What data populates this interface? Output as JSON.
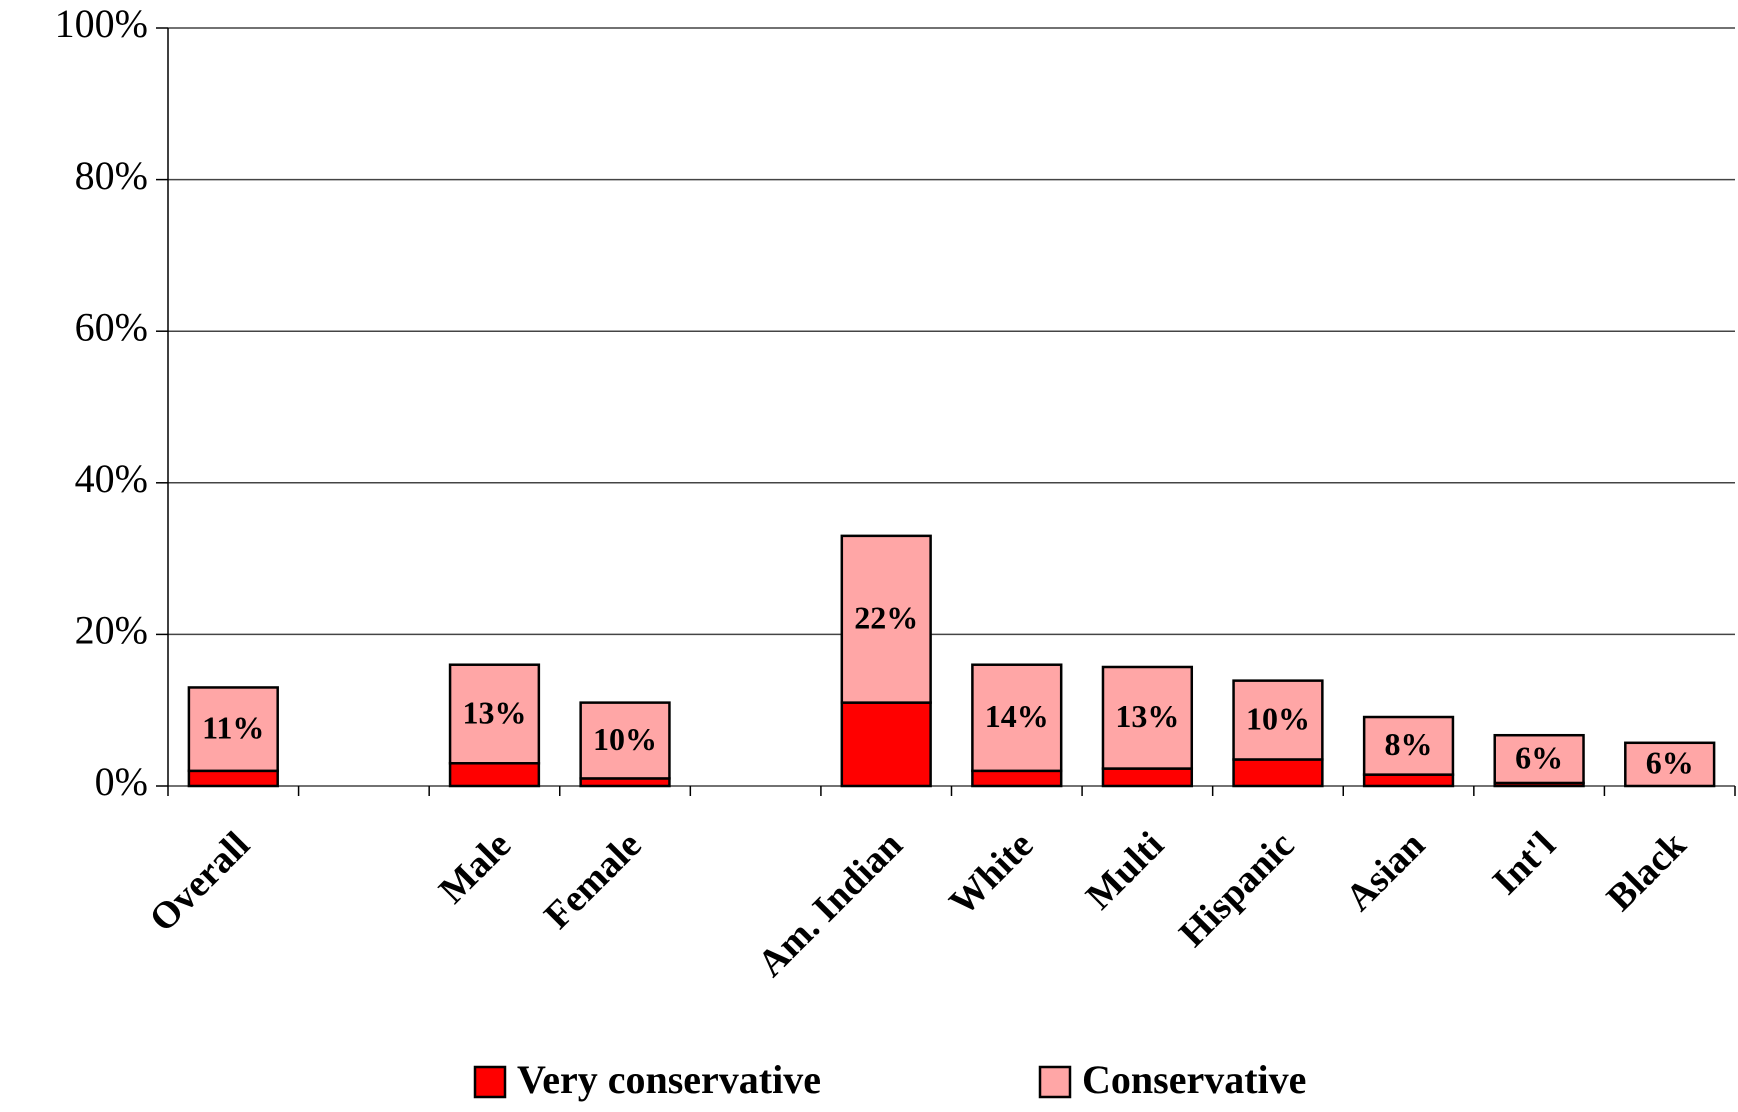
{
  "chart_data": {
    "type": "stacked-bar",
    "categories": [
      "Overall",
      null,
      "Male",
      "Female",
      null,
      "Am. Indian",
      "White",
      "Multi",
      "Hispanic",
      "Asian",
      "Int'l",
      "Black"
    ],
    "series": [
      {
        "name": "Very conservative",
        "color": "#ff0000",
        "values": [
          2,
          null,
          3,
          1,
          null,
          11,
          2,
          2.3,
          3.5,
          1.5,
          0.4,
          0
        ]
      },
      {
        "name": "Conservative",
        "color": "#ffa6a6",
        "values": [
          11,
          null,
          13,
          10,
          null,
          22,
          14,
          13.4,
          10.4,
          7.6,
          6.3,
          5.7
        ],
        "value_labels": [
          "11%",
          null,
          "13%",
          "10%",
          null,
          "22%",
          "14%",
          "13%",
          "10%",
          "8%",
          "6%",
          "6%"
        ]
      }
    ],
    "ylim": [
      0,
      100
    ],
    "yticks": [
      {
        "value": 0,
        "label": "0%"
      },
      {
        "value": 20,
        "label": "20%"
      },
      {
        "value": 40,
        "label": "40%"
      },
      {
        "value": 60,
        "label": "60%"
      },
      {
        "value": 80,
        "label": "80%"
      },
      {
        "value": 100,
        "label": "100%"
      }
    ],
    "grid": true,
    "legend": "bottom"
  }
}
